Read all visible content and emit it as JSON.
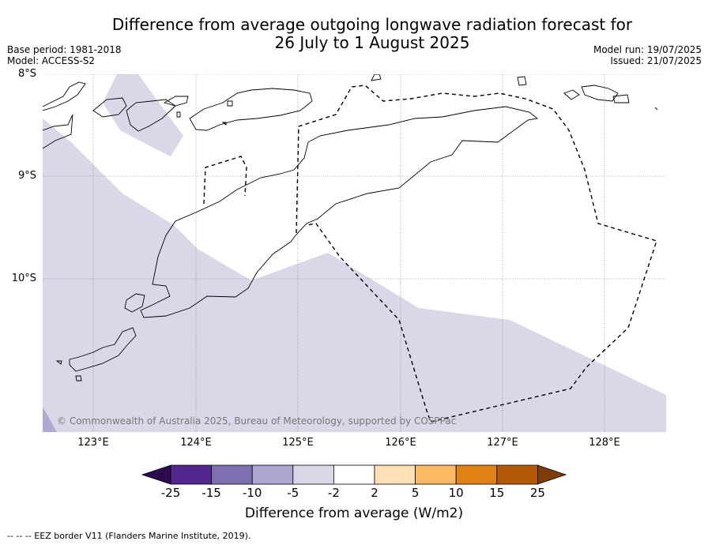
{
  "title": "Difference from average outgoing longwave radiation forecast for\n26 July to 1 August 2025",
  "meta": {
    "base_period": "Base period: 1981-2018",
    "model": "Model: ACCESS-S2",
    "model_run": "Model run: 19/07/2025",
    "issued": "Issued: 21/07/2025"
  },
  "map": {
    "lat_ticks": [
      "8°S",
      "9°S",
      "10°S"
    ],
    "lon_ticks": [
      "123°E",
      "124°E",
      "125°E",
      "126°E",
      "127°E",
      "128°E"
    ],
    "copyright": "© Commonwealth of Australia 2025, Bureau of Meteorology, supported by COSPPac",
    "anomaly_fill_color": "#d8d8e9",
    "strong_anomaly_fill_color": "#aeaad0"
  },
  "colorbar": {
    "label": "Difference from average (W/m2)",
    "ticks": [
      "-25",
      "-15",
      "-10",
      "-5",
      "-2",
      "2",
      "5",
      "10",
      "15",
      "25"
    ],
    "colors": [
      "#2d0a4e",
      "#54278f",
      "#7e6fb0",
      "#ada6d0",
      "#d8d8e9",
      "#ffffff",
      "#fee0b6",
      "#fdb863",
      "#e08214",
      "#b35806",
      "#7f3b08"
    ]
  },
  "footnote": "-- -- -- EEZ border V11 (Flanders Marine Institute, 2019)."
}
